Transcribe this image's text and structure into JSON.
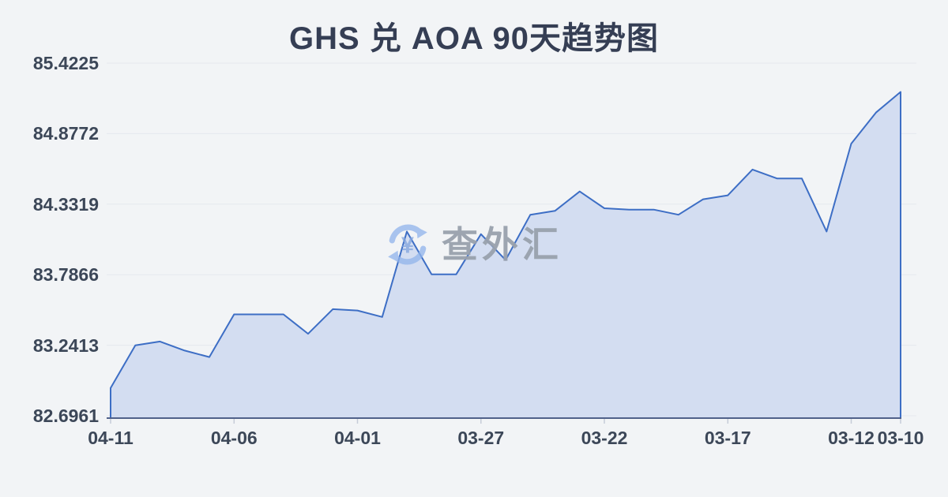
{
  "page": {
    "background": "#f2f4f6"
  },
  "watermark": {
    "text": "查外汇",
    "symbol": "¥",
    "icon": "currency-exchange-icon"
  },
  "chart_data": {
    "type": "area",
    "title": "GHS 兑 AOA 90天趋势图",
    "x": [
      "04-11",
      "04-10",
      "04-09",
      "04-08",
      "04-07",
      "04-06",
      "04-05",
      "04-04",
      "04-03",
      "04-02",
      "04-01",
      "03-31",
      "03-30",
      "03-29",
      "03-28",
      "03-27",
      "03-26",
      "03-25",
      "03-24",
      "03-23",
      "03-22",
      "03-21",
      "03-20",
      "03-19",
      "03-18",
      "03-17",
      "03-16",
      "03-15",
      "03-14",
      "03-13",
      "03-12",
      "03-11",
      "03-10"
    ],
    "values": [
      82.91,
      83.24,
      83.27,
      83.2,
      83.15,
      83.48,
      83.48,
      83.48,
      83.33,
      83.52,
      83.51,
      83.46,
      84.12,
      83.79,
      83.79,
      84.1,
      83.9,
      84.25,
      84.28,
      84.43,
      84.3,
      84.29,
      84.29,
      84.25,
      84.37,
      84.4,
      84.6,
      84.53,
      84.53,
      84.12,
      84.8,
      85.04,
      85.2
    ],
    "y_ticks": [
      85.4225,
      84.8772,
      84.3319,
      83.7866,
      83.2413,
      82.6961
    ],
    "ylim": [
      82.6961,
      85.4225
    ],
    "x_ticks": [
      {
        "i": 0,
        "label": "04-11"
      },
      {
        "i": 5,
        "label": "04-06"
      },
      {
        "i": 10,
        "label": "04-01"
      },
      {
        "i": 15,
        "label": "03-27"
      },
      {
        "i": 20,
        "label": "03-22"
      },
      {
        "i": 25,
        "label": "03-17"
      },
      {
        "i": 30,
        "label": "03-12"
      },
      {
        "i": 32,
        "label": "03-10"
      }
    ],
    "grid": "horizontal",
    "legend": "none",
    "colors": {
      "line": "#3d6ec5",
      "fill": "#d3ddf1",
      "grid": "#e5e8ee",
      "axis": "#50618a",
      "tick": "#c6ccd8",
      "label": "#3c4758",
      "title": "#353e54",
      "watermark_text": "#99a1ad",
      "watermark_icon": "#92b4ec",
      "watermark_symbol": "#82a5de"
    }
  }
}
